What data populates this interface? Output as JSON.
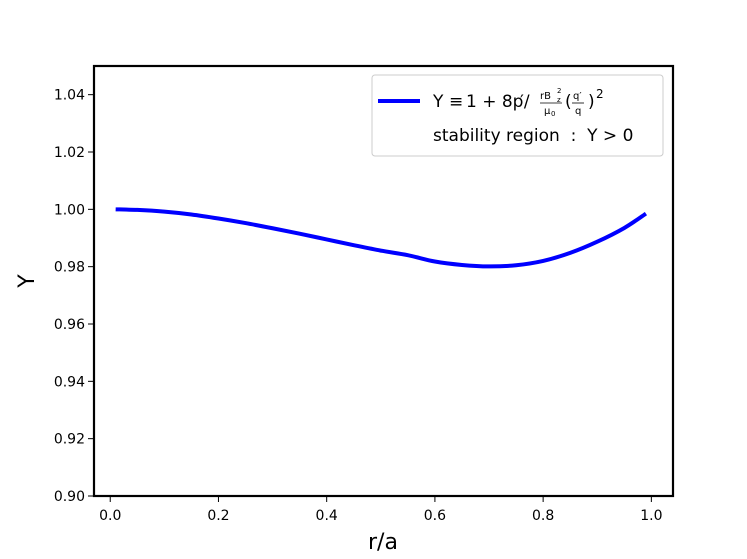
{
  "chart_data": {
    "type": "line",
    "xlabel": "r/a",
    "ylabel": "Y",
    "xlim": [
      -0.03,
      1.04
    ],
    "ylim": [
      0.9,
      1.05
    ],
    "x_ticks": [
      0.0,
      0.2,
      0.4,
      0.6,
      0.8,
      1.0
    ],
    "x_tick_labels": [
      "0.0",
      "0.2",
      "0.4",
      "0.6",
      "0.8",
      "1.0"
    ],
    "y_ticks": [
      0.9,
      0.92,
      0.94,
      0.96,
      0.98,
      1.0,
      1.02,
      1.04
    ],
    "y_tick_labels": [
      "0.90",
      "0.92",
      "0.94",
      "0.96",
      "0.98",
      "1.00",
      "1.02",
      "1.04"
    ],
    "grid": false,
    "legend_position": "top-right",
    "legend": {
      "formula": {
        "y": "Y",
        "equiv": "≡",
        "one_plus": "1 + 8p",
        "prime_slash": "′/",
        "rb_num": "rB",
        "sup2": "2",
        "z_sub": "z",
        "mu_den": "μ",
        "mu_sub": "0",
        "open_paren": "(",
        "q_prime": "q′",
        "q": "q",
        "close_paren": ")",
        "exp2": "2"
      },
      "note": "stability region  :  Y > 0"
    },
    "series": [
      {
        "color": "#0000ff",
        "x": [
          0.01,
          0.05,
          0.1,
          0.15,
          0.2,
          0.25,
          0.3,
          0.35,
          0.4,
          0.45,
          0.5,
          0.55,
          0.6,
          0.65,
          0.7,
          0.75,
          0.8,
          0.85,
          0.9,
          0.95,
          0.99
        ],
        "y": [
          1.0,
          0.9998,
          0.9992,
          0.9982,
          0.9968,
          0.9952,
          0.9934,
          0.9915,
          0.9895,
          0.9875,
          0.9856,
          0.984,
          0.9818,
          0.9806,
          0.9801,
          0.9805,
          0.982,
          0.9848,
          0.9887,
          0.9935,
          0.9985
        ]
      }
    ]
  }
}
